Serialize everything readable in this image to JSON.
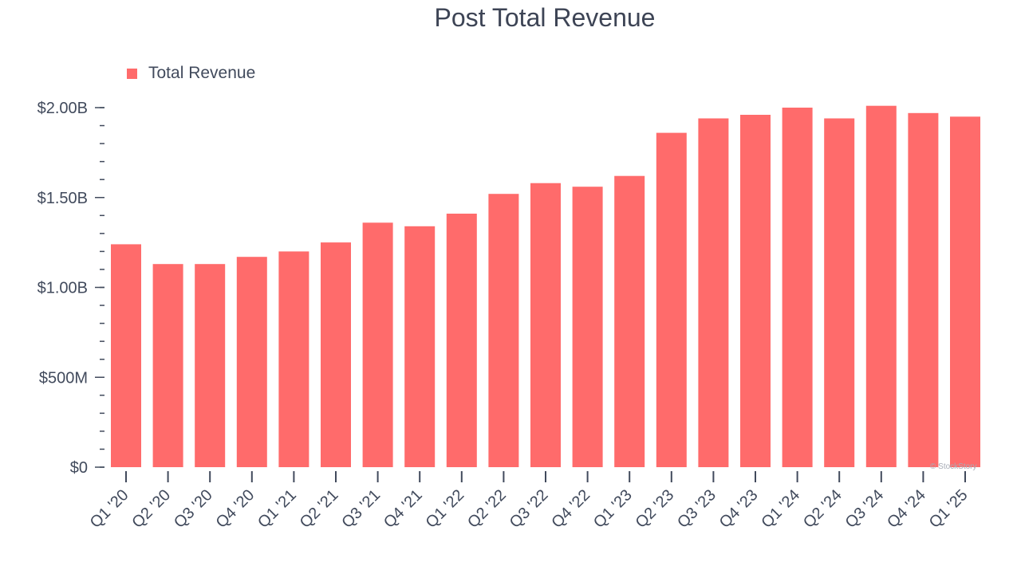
{
  "chart_data": {
    "type": "bar",
    "title": "Post Total Revenue",
    "xlabel": "",
    "ylabel": "",
    "categories": [
      "Q1 '20",
      "Q2 '20",
      "Q3 '20",
      "Q4 '20",
      "Q1 '21",
      "Q2 '21",
      "Q3 '21",
      "Q4 '21",
      "Q1 '22",
      "Q2 '22",
      "Q3 '22",
      "Q4 '22",
      "Q1 '23",
      "Q2 '23",
      "Q3 '23",
      "Q4 '23",
      "Q1 '24",
      "Q2 '24",
      "Q3 '24",
      "Q4 '24",
      "Q1 '25"
    ],
    "series": [
      {
        "name": "Total Revenue",
        "color": "#ff6b6b",
        "values": [
          1.24,
          1.13,
          1.13,
          1.17,
          1.2,
          1.25,
          1.36,
          1.34,
          1.41,
          1.52,
          1.58,
          1.56,
          1.62,
          1.86,
          1.94,
          1.96,
          2.0,
          1.94,
          2.01,
          1.97,
          1.95
        ]
      }
    ],
    "value_unit": "billions USD",
    "ylim": [
      0,
      2.0
    ],
    "yticks": [
      {
        "value": 0,
        "label": "$0"
      },
      {
        "value": 0.5,
        "label": "$500M"
      },
      {
        "value": 1.0,
        "label": "$1.00B"
      },
      {
        "value": 1.5,
        "label": "$1.50B"
      },
      {
        "value": 2.0,
        "label": "$2.00B"
      }
    ],
    "minor_tick_step": 0.1,
    "legend_position": "top-left",
    "grid": false
  },
  "watermark": "© StockStory"
}
